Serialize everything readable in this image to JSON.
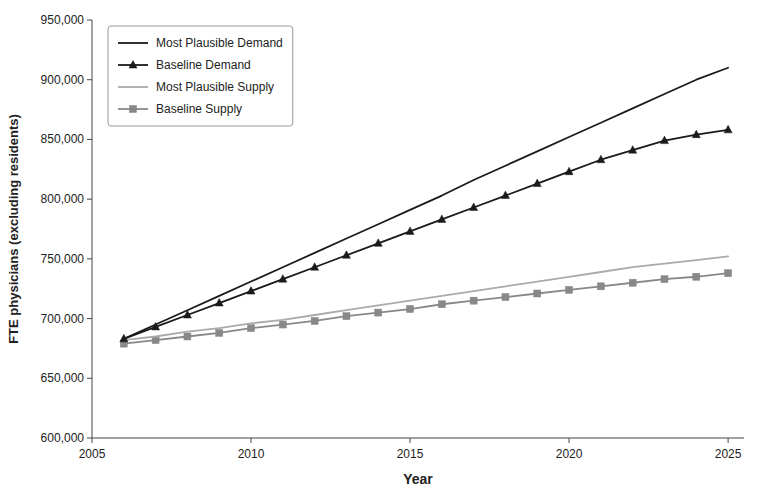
{
  "chart_data": {
    "type": "line",
    "x": [
      2006,
      2007,
      2008,
      2009,
      2010,
      2011,
      2012,
      2013,
      2014,
      2015,
      2016,
      2017,
      2018,
      2019,
      2020,
      2021,
      2022,
      2023,
      2024,
      2025
    ],
    "series": [
      {
        "name": "Most Plausible Demand",
        "color": "#1a1a1a",
        "marker": "none",
        "line_style": "solid",
        "values": [
          683000,
          695000,
          707000,
          719000,
          731000,
          743000,
          755000,
          767000,
          779000,
          791000,
          803000,
          816000,
          828000,
          840000,
          852000,
          864000,
          876000,
          888000,
          900000,
          910000
        ]
      },
      {
        "name": "Baseline Demand",
        "color": "#1a1a1a",
        "marker": "triangle",
        "line_style": "solid",
        "values": [
          683000,
          693000,
          703000,
          713000,
          723000,
          733000,
          743000,
          753000,
          763000,
          773000,
          783000,
          793000,
          803000,
          813000,
          823000,
          833000,
          841000,
          849000,
          854000,
          858000
        ]
      },
      {
        "name": "Most Plausible Supply",
        "color": "#aaaaaa",
        "marker": "none",
        "line_style": "solid",
        "values": [
          682000,
          685000,
          689000,
          692000,
          696000,
          699000,
          703000,
          707000,
          711000,
          715000,
          719000,
          723000,
          727000,
          731000,
          735000,
          739000,
          743000,
          746000,
          749000,
          752000
        ]
      },
      {
        "name": "Baseline Supply",
        "color": "#888888",
        "marker": "square",
        "line_style": "solid",
        "values": [
          679000,
          682000,
          685000,
          688000,
          692000,
          695000,
          698000,
          702000,
          705000,
          708000,
          712000,
          715000,
          718000,
          721000,
          724000,
          727000,
          730000,
          733000,
          735000,
          738000
        ]
      }
    ],
    "xlim": [
      2005,
      2025.5
    ],
    "xticks": [
      2005,
      2010,
      2015,
      2020,
      2025
    ],
    "ylim": [
      600000,
      950000
    ],
    "yticks": [
      {
        "value": 600000,
        "label": "600,000"
      },
      {
        "value": 650000,
        "label": "650,000"
      },
      {
        "value": 700000,
        "label": "700,000"
      },
      {
        "value": 750000,
        "label": "750,000"
      },
      {
        "value": 800000,
        "label": "800,000"
      },
      {
        "value": 850000,
        "label": "850,000"
      },
      {
        "value": 900000,
        "label": "900,000"
      },
      {
        "value": 950000,
        "label": "950,000"
      }
    ],
    "xlabel": "Year",
    "ylabel": "FTE physicians (excluding residents)",
    "grid": false,
    "legend": "upper left"
  }
}
